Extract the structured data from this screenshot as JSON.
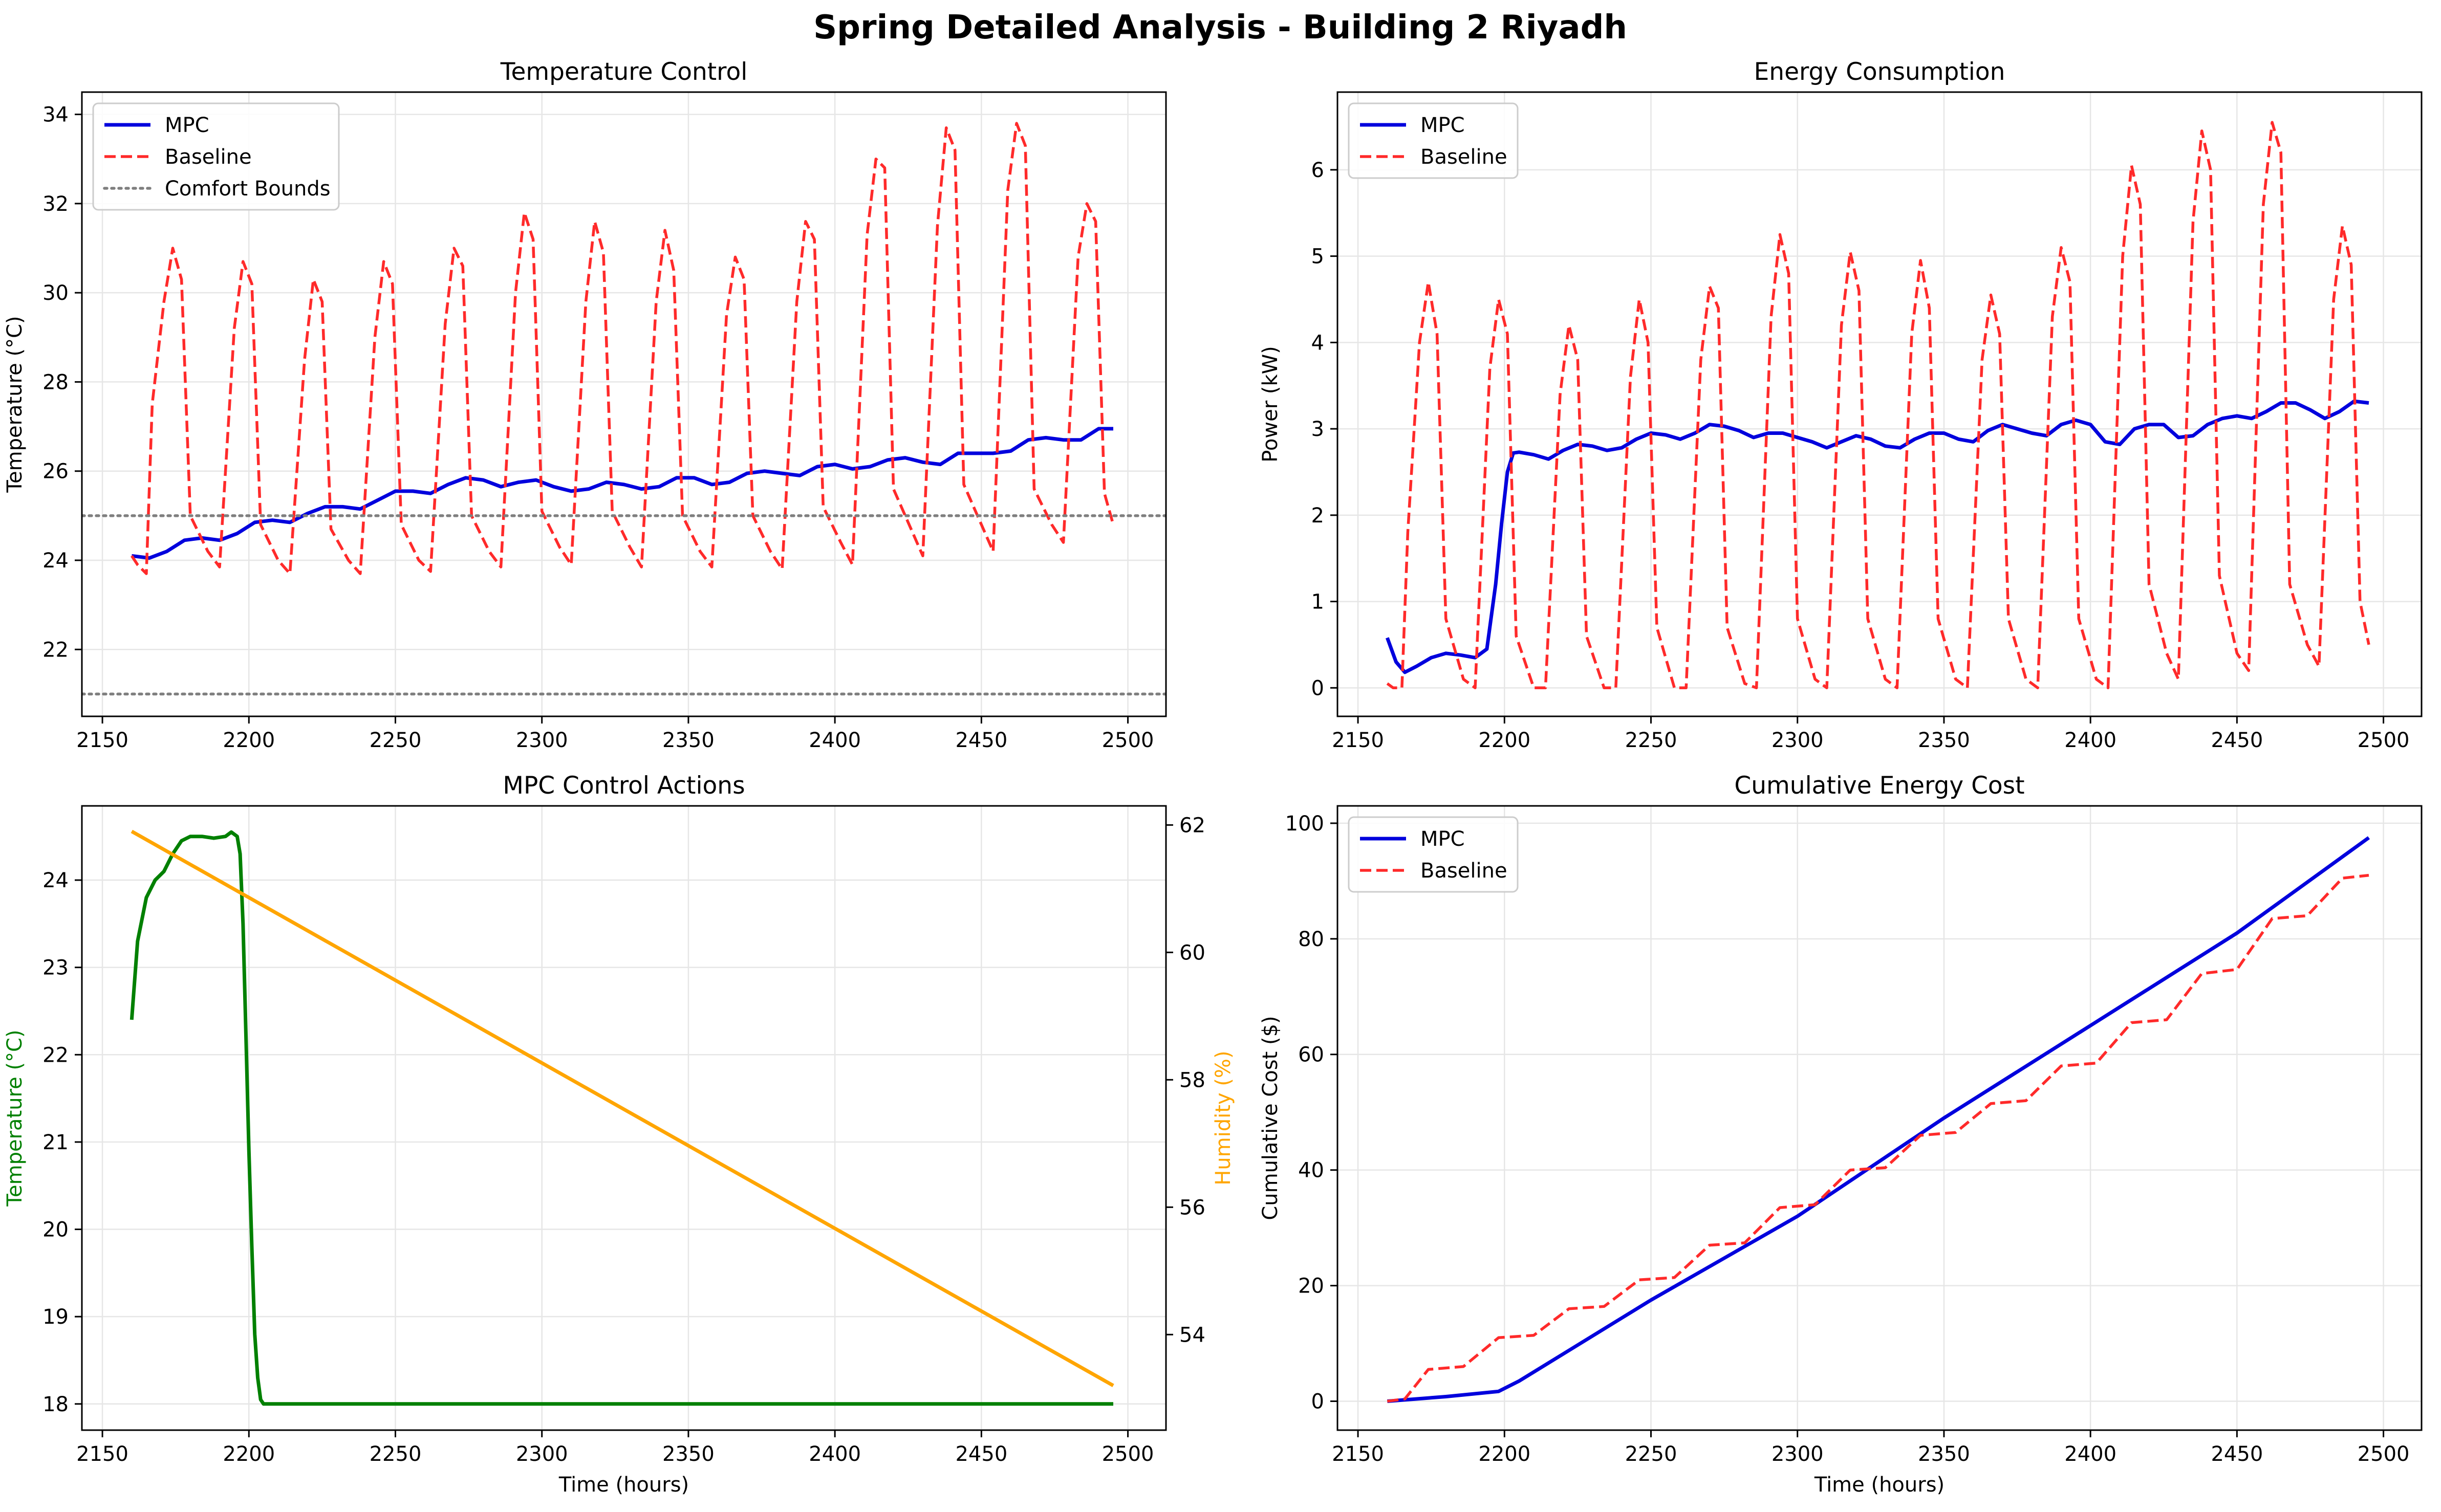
{
  "figure": {
    "title": "Spring Detailed Analysis - Building 2 Riyadh"
  },
  "colors": {
    "mpc": "#0000dd",
    "baseline": "#ff2a2a",
    "bounds": "#7f7f7f",
    "green": "#008000",
    "orange": "#ffa500",
    "grid": "#e6e6e6"
  },
  "chart_data": [
    {
      "type": "line",
      "title": "Temperature Control",
      "xlabel": "",
      "ylabel": "Temperature (°C)",
      "xlim": [
        2143,
        2513
      ],
      "ylim": [
        20.5,
        34.5
      ],
      "xticks": [
        2150,
        2200,
        2250,
        2300,
        2350,
        2400,
        2450,
        2500
      ],
      "yticks": [
        22,
        24,
        26,
        28,
        30,
        32,
        34
      ],
      "grid": true,
      "legend": "top-left",
      "series": [
        {
          "name": "MPC",
          "style": "solid",
          "x": [
            2160,
            2166,
            2172,
            2178,
            2184,
            2190,
            2196,
            2202,
            2208,
            2214,
            2220,
            2226,
            2232,
            2238,
            2244,
            2250,
            2256,
            2262,
            2268,
            2274,
            2280,
            2286,
            2292,
            2298,
            2304,
            2310,
            2316,
            2322,
            2328,
            2334,
            2340,
            2346,
            2352,
            2358,
            2364,
            2370,
            2376,
            2382,
            2388,
            2394,
            2400,
            2406,
            2412,
            2418,
            2424,
            2430,
            2436,
            2442,
            2448,
            2454,
            2460,
            2466,
            2472,
            2478,
            2484,
            2490,
            2495
          ],
          "y": [
            24.1,
            24.05,
            24.2,
            24.45,
            24.5,
            24.45,
            24.6,
            24.85,
            24.9,
            24.85,
            25.05,
            25.2,
            25.2,
            25.15,
            25.35,
            25.55,
            25.55,
            25.5,
            25.7,
            25.85,
            25.8,
            25.65,
            25.75,
            25.8,
            25.65,
            25.55,
            25.6,
            25.75,
            25.7,
            25.6,
            25.65,
            25.85,
            25.85,
            25.7,
            25.75,
            25.95,
            26.0,
            25.95,
            25.9,
            26.1,
            26.15,
            26.05,
            26.1,
            26.25,
            26.3,
            26.2,
            26.15,
            26.4,
            26.4,
            26.4,
            26.45,
            26.7,
            26.75,
            26.7,
            26.7,
            26.95,
            26.95
          ]
        },
        {
          "name": "Baseline",
          "style": "dashed",
          "x": [
            2160,
            2162,
            2165,
            2167,
            2171,
            2174,
            2177,
            2180,
            2186,
            2190,
            2195,
            2198,
            2201,
            2204,
            2210,
            2214,
            2219,
            2222,
            2225,
            2228,
            2234,
            2238,
            2243,
            2246,
            2249,
            2252,
            2258,
            2262,
            2267,
            2270,
            2273,
            2276,
            2282,
            2286,
            2291,
            2294,
            2297,
            2300,
            2306,
            2310,
            2315,
            2318,
            2321,
            2324,
            2330,
            2334,
            2339,
            2342,
            2345,
            2348,
            2354,
            2358,
            2363,
            2366,
            2369,
            2372,
            2378,
            2382,
            2387,
            2390,
            2393,
            2396,
            2402,
            2406,
            2411,
            2414,
            2417,
            2420,
            2426,
            2430,
            2435,
            2438,
            2441,
            2444,
            2450,
            2454,
            2459,
            2462,
            2465,
            2468,
            2474,
            2478,
            2483,
            2486,
            2489,
            2492,
            2495
          ],
          "y": [
            24.1,
            23.9,
            23.7,
            27.5,
            29.8,
            31.0,
            30.3,
            25.0,
            24.2,
            23.85,
            29.2,
            30.7,
            30.2,
            24.8,
            24.0,
            23.7,
            28.5,
            30.3,
            29.8,
            24.7,
            24.0,
            23.7,
            29.0,
            30.7,
            30.2,
            24.8,
            24.0,
            23.75,
            29.3,
            31.0,
            30.6,
            25.0,
            24.2,
            23.85,
            30.0,
            31.8,
            31.2,
            25.1,
            24.3,
            23.9,
            29.8,
            31.6,
            30.9,
            25.1,
            24.3,
            23.85,
            29.8,
            31.4,
            30.5,
            25.0,
            24.2,
            23.85,
            29.5,
            30.8,
            30.3,
            25.0,
            24.2,
            23.8,
            29.8,
            31.6,
            31.2,
            25.2,
            24.4,
            23.9,
            31.3,
            33.0,
            32.8,
            25.6,
            24.7,
            24.1,
            31.5,
            33.7,
            33.2,
            25.7,
            24.8,
            24.2,
            32.3,
            33.8,
            33.3,
            25.6,
            24.8,
            24.4,
            30.8,
            32.0,
            31.6,
            25.5,
            24.8
          ]
        },
        {
          "name": "Comfort Bounds",
          "style": "dotted",
          "x": [
            2143,
            2513
          ],
          "y": [
            25,
            25
          ]
        },
        {
          "name": "",
          "style": "dotted",
          "x": [
            2143,
            2513
          ],
          "y": [
            21,
            21
          ]
        }
      ]
    },
    {
      "type": "line",
      "title": "Energy Consumption",
      "xlabel": "",
      "ylabel": "Power (kW)",
      "xlim": [
        2143,
        2513
      ],
      "ylim": [
        -0.33,
        6.9
      ],
      "xticks": [
        2150,
        2200,
        2250,
        2300,
        2350,
        2400,
        2450,
        2500
      ],
      "yticks": [
        0,
        1,
        2,
        3,
        4,
        5,
        6
      ],
      "grid": true,
      "legend": "top-left",
      "series": [
        {
          "name": "MPC",
          "style": "solid",
          "x": [
            2160,
            2163,
            2166,
            2170,
            2175,
            2180,
            2185,
            2190,
            2194,
            2197,
            2199,
            2201,
            2203,
            2205,
            2210,
            2215,
            2220,
            2225,
            2230,
            2235,
            2240,
            2245,
            2250,
            2255,
            2260,
            2265,
            2270,
            2275,
            2280,
            2285,
            2290,
            2295,
            2300,
            2305,
            2310,
            2315,
            2320,
            2325,
            2330,
            2335,
            2340,
            2345,
            2350,
            2355,
            2360,
            2365,
            2370,
            2375,
            2380,
            2385,
            2390,
            2395,
            2400,
            2405,
            2410,
            2415,
            2420,
            2425,
            2430,
            2435,
            2440,
            2445,
            2450,
            2455,
            2460,
            2465,
            2470,
            2475,
            2480,
            2485,
            2490,
            2495
          ],
          "y": [
            0.58,
            0.3,
            0.18,
            0.25,
            0.35,
            0.4,
            0.38,
            0.35,
            0.45,
            1.2,
            1.9,
            2.5,
            2.72,
            2.73,
            2.7,
            2.65,
            2.75,
            2.82,
            2.8,
            2.75,
            2.78,
            2.88,
            2.95,
            2.93,
            2.88,
            2.95,
            3.05,
            3.03,
            2.98,
            2.9,
            2.95,
            2.95,
            2.9,
            2.85,
            2.78,
            2.85,
            2.92,
            2.88,
            2.8,
            2.78,
            2.88,
            2.95,
            2.95,
            2.88,
            2.85,
            2.98,
            3.05,
            3.0,
            2.95,
            2.92,
            3.05,
            3.1,
            3.05,
            2.85,
            2.82,
            3.0,
            3.05,
            3.05,
            2.9,
            2.92,
            3.05,
            3.12,
            3.15,
            3.12,
            3.2,
            3.3,
            3.3,
            3.22,
            3.12,
            3.2,
            3.32,
            3.3
          ]
        },
        {
          "name": "Baseline",
          "style": "dashed",
          "x": [
            2160,
            2162,
            2165,
            2167,
            2171,
            2174,
            2177,
            2180,
            2186,
            2190,
            2195,
            2198,
            2201,
            2204,
            2210,
            2214,
            2219,
            2222,
            2225,
            2228,
            2234,
            2238,
            2243,
            2246,
            2249,
            2252,
            2258,
            2262,
            2267,
            2270,
            2273,
            2276,
            2282,
            2286,
            2291,
            2294,
            2297,
            2300,
            2306,
            2310,
            2315,
            2318,
            2321,
            2324,
            2330,
            2334,
            2339,
            2342,
            2345,
            2348,
            2354,
            2358,
            2363,
            2366,
            2369,
            2372,
            2378,
            2382,
            2387,
            2390,
            2393,
            2396,
            2402,
            2406,
            2411,
            2414,
            2417,
            2420,
            2426,
            2430,
            2435,
            2438,
            2441,
            2444,
            2450,
            2454,
            2459,
            2462,
            2465,
            2468,
            2474,
            2478,
            2483,
            2486,
            2489,
            2492,
            2495
          ],
          "y": [
            0.05,
            0.0,
            0.0,
            1.8,
            4.0,
            4.7,
            4.1,
            0.8,
            0.1,
            0.0,
            3.7,
            4.5,
            4.1,
            0.6,
            0.0,
            0.0,
            3.4,
            4.2,
            3.8,
            0.6,
            0.0,
            0.0,
            3.6,
            4.5,
            4.0,
            0.7,
            0.0,
            0.0,
            3.8,
            4.65,
            4.4,
            0.7,
            0.05,
            0.0,
            4.3,
            5.25,
            4.8,
            0.8,
            0.1,
            0.0,
            4.2,
            5.05,
            4.6,
            0.8,
            0.1,
            0.0,
            4.1,
            4.95,
            4.4,
            0.8,
            0.1,
            0.0,
            3.8,
            4.55,
            4.1,
            0.8,
            0.1,
            0.0,
            4.3,
            5.1,
            4.7,
            0.8,
            0.1,
            0.0,
            5.0,
            6.05,
            5.6,
            1.2,
            0.4,
            0.1,
            5.4,
            6.45,
            6.0,
            1.3,
            0.4,
            0.2,
            5.6,
            6.55,
            6.2,
            1.2,
            0.5,
            0.25,
            4.5,
            5.35,
            4.9,
            1.0,
            0.5
          ]
        }
      ]
    },
    {
      "type": "line",
      "title": "MPC Control Actions",
      "xlabel": "Time (hours)",
      "ylabel": "Temperature (°C)",
      "ylabel_right": "Humidity (%)",
      "xlim": [
        2143,
        2513
      ],
      "ylim": [
        17.7,
        24.85
      ],
      "ylim_right": [
        52.5,
        62.3
      ],
      "xticks": [
        2150,
        2200,
        2250,
        2300,
        2350,
        2400,
        2450,
        2500
      ],
      "yticks": [
        18,
        19,
        20,
        21,
        22,
        23,
        24
      ],
      "yticks_right": [
        54,
        56,
        58,
        60,
        62
      ],
      "grid": true,
      "series": [
        {
          "name": "",
          "axis": "left",
          "style": "solid",
          "x": [
            2160,
            2162,
            2165,
            2168,
            2171,
            2174,
            2177,
            2180,
            2184,
            2188,
            2192,
            2194,
            2196,
            2197,
            2198,
            2199,
            2200,
            2201,
            2202,
            2203,
            2204,
            2205,
            2208,
            2220,
            2300,
            2400,
            2495
          ],
          "y": [
            22.4,
            23.3,
            23.8,
            24.0,
            24.1,
            24.3,
            24.45,
            24.5,
            24.5,
            24.48,
            24.5,
            24.55,
            24.5,
            24.3,
            23.5,
            22.2,
            20.9,
            19.8,
            18.8,
            18.3,
            18.05,
            18.0,
            18.0,
            18.0,
            18.0,
            18.0,
            18.0
          ]
        },
        {
          "name": "",
          "axis": "right",
          "style": "solid",
          "x": [
            2160,
            2495
          ],
          "y": [
            61.9,
            53.2
          ]
        }
      ]
    },
    {
      "type": "line",
      "title": "Cumulative Energy Cost",
      "xlabel": "Time (hours)",
      "ylabel": "Cumulative Cost ($)",
      "xlim": [
        2143,
        2513
      ],
      "ylim": [
        -5,
        103
      ],
      "xticks": [
        2150,
        2200,
        2250,
        2300,
        2350,
        2400,
        2450,
        2500
      ],
      "yticks": [
        0,
        20,
        40,
        60,
        80,
        100
      ],
      "grid": true,
      "legend": "top-left",
      "series": [
        {
          "name": "MPC",
          "style": "solid",
          "x": [
            2160,
            2180,
            2198,
            2205,
            2250,
            2300,
            2350,
            2400,
            2450,
            2495
          ],
          "y": [
            0,
            0.8,
            1.7,
            3.5,
            17.5,
            32.0,
            49.0,
            65.0,
            81.0,
            97.5
          ]
        },
        {
          "name": "Baseline",
          "style": "dashed",
          "x": [
            2160,
            2166,
            2174,
            2186,
            2198,
            2210,
            2222,
            2234,
            2246,
            2258,
            2270,
            2282,
            2294,
            2306,
            2318,
            2330,
            2342,
            2354,
            2366,
            2378,
            2390,
            2402,
            2414,
            2426,
            2438,
            2450,
            2462,
            2474,
            2486,
            2495
          ],
          "y": [
            0,
            0.4,
            5.5,
            6.0,
            11.0,
            11.4,
            16.0,
            16.4,
            21.0,
            21.4,
            27.0,
            27.4,
            33.5,
            34.0,
            40.0,
            40.4,
            46.0,
            46.5,
            51.5,
            52.0,
            58.0,
            58.5,
            65.5,
            66.0,
            74.0,
            74.7,
            83.5,
            84.0,
            90.5,
            91.0
          ]
        }
      ]
    }
  ]
}
